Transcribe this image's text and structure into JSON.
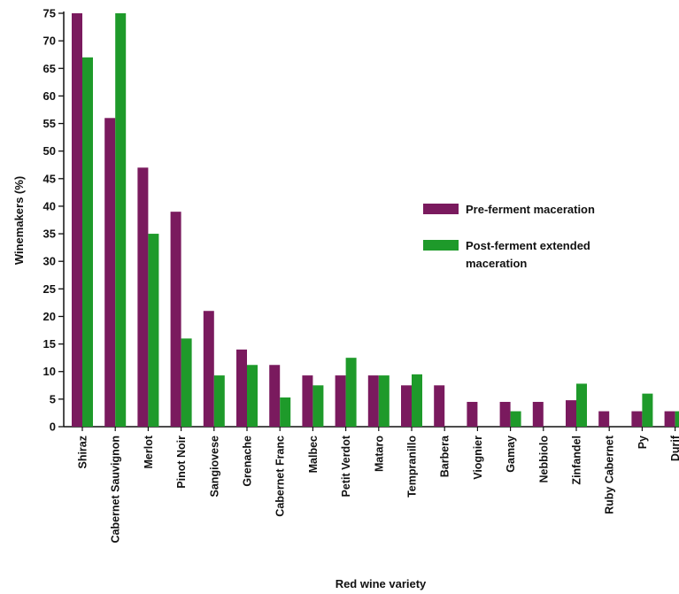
{
  "chart_data": {
    "type": "bar",
    "title": "",
    "xlabel": "Red wine variety",
    "ylabel": "Winemakers (%)",
    "ylim": [
      0,
      75
    ],
    "yticks": [
      0,
      5,
      10,
      15,
      20,
      25,
      30,
      35,
      40,
      45,
      50,
      55,
      60,
      65,
      70,
      75
    ],
    "grid": false,
    "legend_position": "right",
    "categories": [
      "Shiraz",
      "Cabernet Sauvignon",
      "Merlot",
      "Pinot Noir",
      "Sangiovese",
      "Grenache",
      "Cabernet Franc",
      "Malbec",
      "Petit Verdot",
      "Mataro",
      "Tempranillo",
      "Barbera",
      "Viognier",
      "Gamay",
      "Nebbiolo",
      "Zinfandel",
      "Ruby Cabernet",
      "Py",
      "Durif"
    ],
    "series": [
      {
        "name": "Pre-ferment maceration",
        "color": "#7a1a5e",
        "values": [
          75,
          56,
          47,
          39,
          21,
          14,
          11.2,
          9.3,
          9.3,
          9.3,
          7.5,
          7.5,
          4.5,
          4.5,
          4.5,
          4.8,
          2.8,
          2.8,
          2.8
        ]
      },
      {
        "name": "Post-ferment extended maceration",
        "color": "#1e9a2a",
        "values": [
          67,
          75,
          35,
          16,
          9.3,
          11.2,
          5.3,
          7.5,
          12.5,
          9.3,
          9.5,
          0,
          0,
          2.8,
          0,
          7.8,
          0,
          6,
          2.8
        ]
      }
    ],
    "legend": [
      {
        "lines": [
          "Pre-ferment maceration"
        ]
      },
      {
        "lines": [
          "Post-ferment extended",
          "maceration"
        ]
      }
    ]
  }
}
